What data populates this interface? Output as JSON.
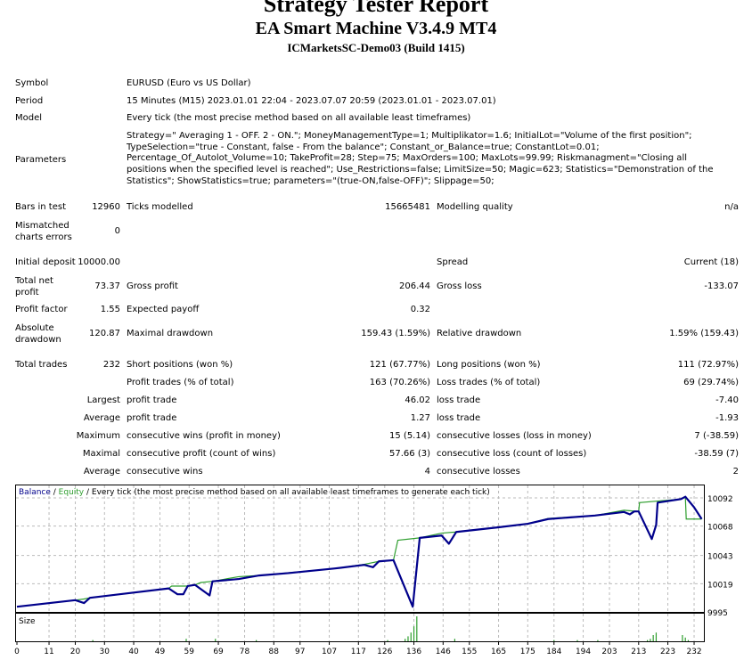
{
  "header": {
    "title": "Strategy Tester Report",
    "ea_name": "EA Smart Machine V3.4.9 MT4",
    "server": "ICMarketsSC-Demo03 (Build 1415)"
  },
  "info": {
    "symbol_label": "Symbol",
    "symbol": "EURUSD (Euro vs US Dollar)",
    "period_label": "Period",
    "period": "15 Minutes (M15) 2023.01.01 22:04 - 2023.07.07 20:59 (2023.01.01 - 2023.07.01)",
    "model_label": "Model",
    "model": "Every tick (the most precise method based on all available least timeframes)",
    "parameters_label": "Parameters",
    "parameters": "Strategy=\" Averaging 1 - OFF. 2 - ON.\"; MoneyManagementType=1; Multiplikator=1.6; InitialLot=\"Volume of the first position\"; TypeSelection=\"true - Constant, false - From the balance\"; Constant_or_Balance=true; ConstantLot=0.01; Percentage_Of_Autolot_Volume=10; TakeProfit=28; Step=75; MaxOrders=100; MaxLots=99.99; Riskmanagment=\"Closing all positions when the specified level is reached\"; Use_Restrictions=false; LimitSize=50; Magic=623; Statistics=\"Demonstration of the Statistics\"; ShowStatistics=true; parameters=\"(true-ON,false-OFF)\"; Slippage=50;"
  },
  "stats": {
    "bars_label": "Bars in test",
    "bars": "12960",
    "ticks_label": "Ticks modelled",
    "ticks": "15665481",
    "quality_label": "Modelling quality",
    "quality": "n/a",
    "mismatch_label": "Mismatched charts errors",
    "mismatch": "0",
    "deposit_label": "Initial deposit",
    "deposit": "10000.00",
    "spread_label": "Spread",
    "spread": "Current (18)",
    "net_label": "Total net profit",
    "net": "73.37",
    "gross_profit_label": "Gross profit",
    "gross_profit": "206.44",
    "gross_loss_label": "Gross loss",
    "gross_loss": "-133.07",
    "pf_label": "Profit factor",
    "pf": "1.55",
    "payoff_label": "Expected payoff",
    "payoff": "0.32",
    "abs_dd_label": "Absolute drawdown",
    "abs_dd": "120.87",
    "max_dd_label": "Maximal drawdown",
    "max_dd": "159.43 (1.59%)",
    "rel_dd_label": "Relative drawdown",
    "rel_dd": "1.59% (159.43)",
    "trades_label": "Total trades",
    "trades": "232",
    "short_label": "Short positions (won %)",
    "short": "121 (67.77%)",
    "long_label": "Long positions (won %)",
    "long": "111 (72.97%)",
    "profit_trades_label": "Profit trades (% of total)",
    "profit_trades": "163 (70.26%)",
    "loss_trades_label": "Loss trades (% of total)",
    "loss_trades": "69 (29.74%)",
    "largest_label": "Largest",
    "largest_profit_label": "profit trade",
    "largest_profit": "46.02",
    "largest_loss_label": "loss trade",
    "largest_loss": "-7.40",
    "average_label": "Average",
    "avg_profit_label": "profit trade",
    "avg_profit": "1.27",
    "avg_loss_label": "loss trade",
    "avg_loss": "-1.93",
    "maximum_label": "Maximum",
    "max_wins_label": "consecutive wins (profit in money)",
    "max_wins": "15 (5.14)",
    "max_losses_label": "consecutive losses (loss in money)",
    "max_losses": "7 (-38.59)",
    "maximal_label": "Maximal",
    "max_profit_label": "consecutive profit (count of wins)",
    "max_profit": "57.66 (3)",
    "max_loss_label": "consecutive loss (count of losses)",
    "max_loss": "-38.59 (7)",
    "avg2_label": "Average",
    "avg_wins_label": "consecutive wins",
    "avg_wins": "4",
    "avg_losses_label": "consecutive losses",
    "avg_losses": "2"
  },
  "chart_data": {
    "type": "line",
    "legend": {
      "balance": "Balance",
      "sep1": " / ",
      "equity": "Equity",
      "rest": " / Every tick (the most precise method based on all available least timeframes to generate each tick)"
    },
    "colors": {
      "balance": "#00008b",
      "equity": "#2e9e2e",
      "size": "#2e9e2e"
    },
    "ylim": [
      9995,
      10092
    ],
    "y_ticks": [
      10092,
      10068,
      10043,
      10019,
      9995
    ],
    "xlim": [
      0,
      235
    ],
    "x_ticks": [
      0,
      11,
      20,
      30,
      40,
      49,
      59,
      69,
      78,
      88,
      97,
      107,
      117,
      126,
      136,
      146,
      155,
      165,
      175,
      184,
      194,
      203,
      213,
      223,
      232
    ],
    "grid": true,
    "series": [
      {
        "name": "Balance",
        "points": [
          [
            0,
            9999.4
          ],
          [
            20,
            10005
          ],
          [
            23,
            10002.5
          ],
          [
            25,
            10007
          ],
          [
            52,
            10015
          ],
          [
            55,
            10010
          ],
          [
            57,
            10010
          ],
          [
            58.5,
            10017
          ],
          [
            61,
            10018
          ],
          [
            66,
            10009
          ],
          [
            67,
            10021
          ],
          [
            76,
            10023
          ],
          [
            83,
            10026
          ],
          [
            93,
            10028
          ],
          [
            109,
            10032
          ],
          [
            119,
            10035
          ],
          [
            122,
            10033
          ],
          [
            124,
            10038
          ],
          [
            129,
            10039
          ],
          [
            135.6,
            9999.4
          ],
          [
            138,
            10058
          ],
          [
            145.5,
            10060
          ],
          [
            148,
            10053
          ],
          [
            150.5,
            10063
          ],
          [
            165,
            10067
          ],
          [
            175,
            10070
          ],
          [
            182,
            10074
          ],
          [
            198,
            10077
          ],
          [
            208,
            10080
          ],
          [
            210,
            10078
          ],
          [
            211.5,
            10080.5
          ],
          [
            213,
            10080.5
          ],
          [
            217.5,
            10057
          ],
          [
            219,
            10069
          ],
          [
            219.5,
            10088
          ],
          [
            227.5,
            10091
          ],
          [
            229,
            10093
          ],
          [
            232,
            10084
          ],
          [
            234.6,
            10074
          ]
        ]
      },
      {
        "name": "Equity",
        "points": [
          [
            0,
            9999.4
          ],
          [
            20,
            10005
          ],
          [
            23,
            10006
          ],
          [
            25,
            10007
          ],
          [
            52,
            10015
          ],
          [
            53,
            10017
          ],
          [
            58.5,
            10017
          ],
          [
            61,
            10018
          ],
          [
            63,
            10020
          ],
          [
            67,
            10021
          ],
          [
            76,
            10025
          ],
          [
            83,
            10026
          ],
          [
            109,
            10032
          ],
          [
            119,
            10035.5
          ],
          [
            124,
            10038
          ],
          [
            129,
            10039
          ],
          [
            130.5,
            10056
          ],
          [
            138,
            10058
          ],
          [
            145.5,
            10062
          ],
          [
            150.5,
            10063
          ],
          [
            165,
            10067
          ],
          [
            175,
            10070
          ],
          [
            182,
            10074.5
          ],
          [
            198,
            10077
          ],
          [
            208,
            10081.5
          ],
          [
            213,
            10080.5
          ],
          [
            213.3,
            10088
          ],
          [
            227.5,
            10091
          ],
          [
            229,
            10093
          ],
          [
            229.3,
            10074
          ],
          [
            234.6,
            10074
          ]
        ]
      }
    ],
    "size_panel": {
      "label": "Size",
      "bars": [
        [
          26,
          0.05
        ],
        [
          58,
          0.1
        ],
        [
          68,
          0.1
        ],
        [
          82,
          0.05
        ],
        [
          127,
          0.05
        ],
        [
          133,
          0.1
        ],
        [
          134,
          0.2
        ],
        [
          135,
          0.35
        ],
        [
          136,
          0.6
        ],
        [
          137,
          1.0
        ],
        [
          150,
          0.1
        ],
        [
          184,
          0.05
        ],
        [
          192,
          0.05
        ],
        [
          199,
          0.05
        ],
        [
          216,
          0.05
        ],
        [
          217,
          0.1
        ],
        [
          218,
          0.25
        ],
        [
          219,
          0.35
        ],
        [
          228,
          0.25
        ],
        [
          229,
          0.15
        ],
        [
          230,
          0.05
        ]
      ]
    }
  }
}
